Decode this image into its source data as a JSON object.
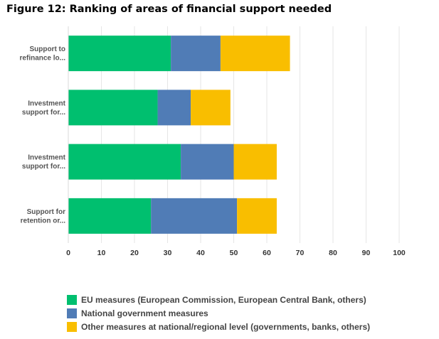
{
  "title": "Figure 12: Ranking of areas of financial support needed",
  "colors": {
    "eu": "#00bf6f",
    "national": "#507cb6",
    "other": "#f9be00"
  },
  "chart_data": {
    "type": "bar",
    "orientation": "horizontal",
    "stacked": true,
    "categories": [
      [
        "Support to",
        "refinance lo..."
      ],
      [
        "Investment",
        "support for..."
      ],
      [
        "Investment",
        "support for..."
      ],
      [
        "Support for",
        "retention or..."
      ]
    ],
    "series": [
      {
        "name": "EU measures (European Commission, European Central Bank, others)",
        "color": "#00bf6f",
        "values": [
          31,
          27,
          34,
          25
        ]
      },
      {
        "name": "National government measures",
        "color": "#507cb6",
        "values": [
          15,
          10,
          16,
          26
        ]
      },
      {
        "name": "Other measures at national/regional level (governments, banks, others)",
        "color": "#f9be00",
        "values": [
          21,
          12,
          13,
          12
        ]
      }
    ],
    "xlim": [
      0,
      100
    ],
    "xticks": [
      0,
      10,
      20,
      30,
      40,
      50,
      60,
      70,
      80,
      90,
      100
    ],
    "grid": true,
    "legend": "bottom"
  }
}
